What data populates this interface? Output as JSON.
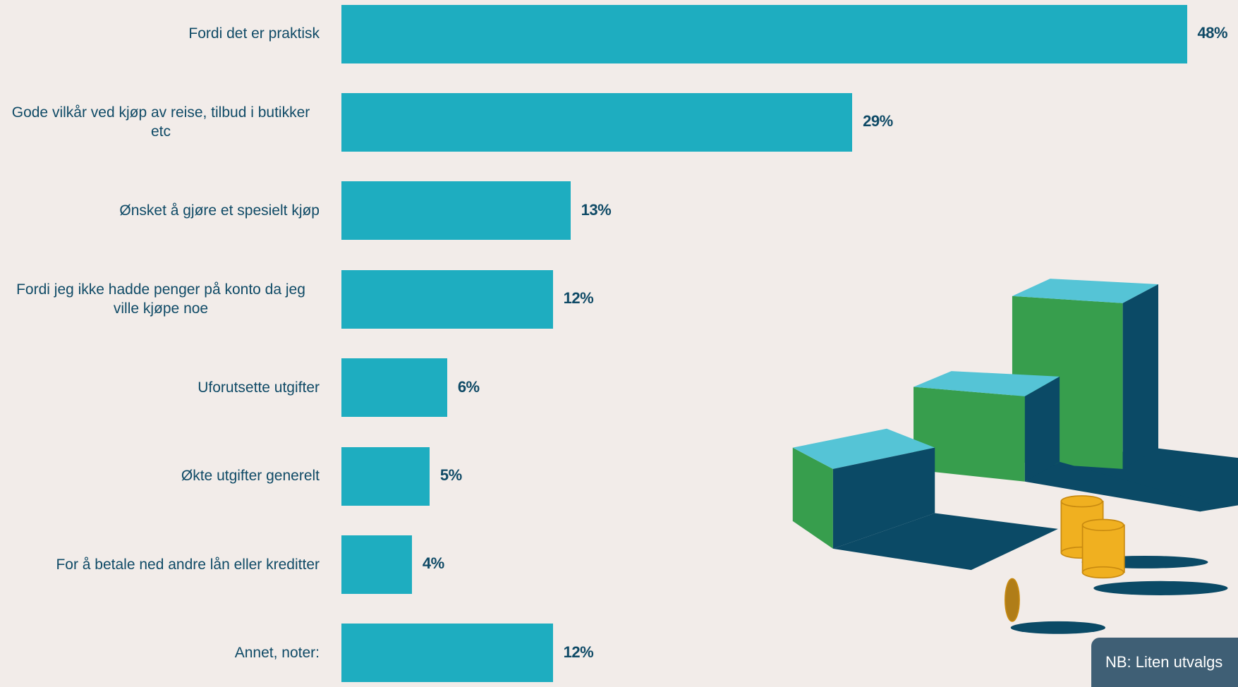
{
  "chart_data": {
    "type": "bar",
    "orientation": "horizontal",
    "categories": [
      "Fordi det er praktisk",
      "Gode vilkår ved kjøp av reise, tilbud i butikker etc",
      "Ønsket å gjøre et spesielt kjøp",
      "Fordi jeg ikke hadde penger på konto da jeg ville kjøpe noe",
      "Uforutsette utgifter",
      "Økte utgifter generelt",
      "For å betale ned andre lån eller kreditter",
      "Annet, noter:"
    ],
    "values": [
      48,
      29,
      13,
      12,
      6,
      5,
      4,
      12
    ],
    "value_labels": [
      "48%",
      "29%",
      "13%",
      "12%",
      "6%",
      "5%",
      "4%",
      "12%"
    ],
    "color": "#1eadc0",
    "note": "NB: Liten utvalgs"
  }
}
